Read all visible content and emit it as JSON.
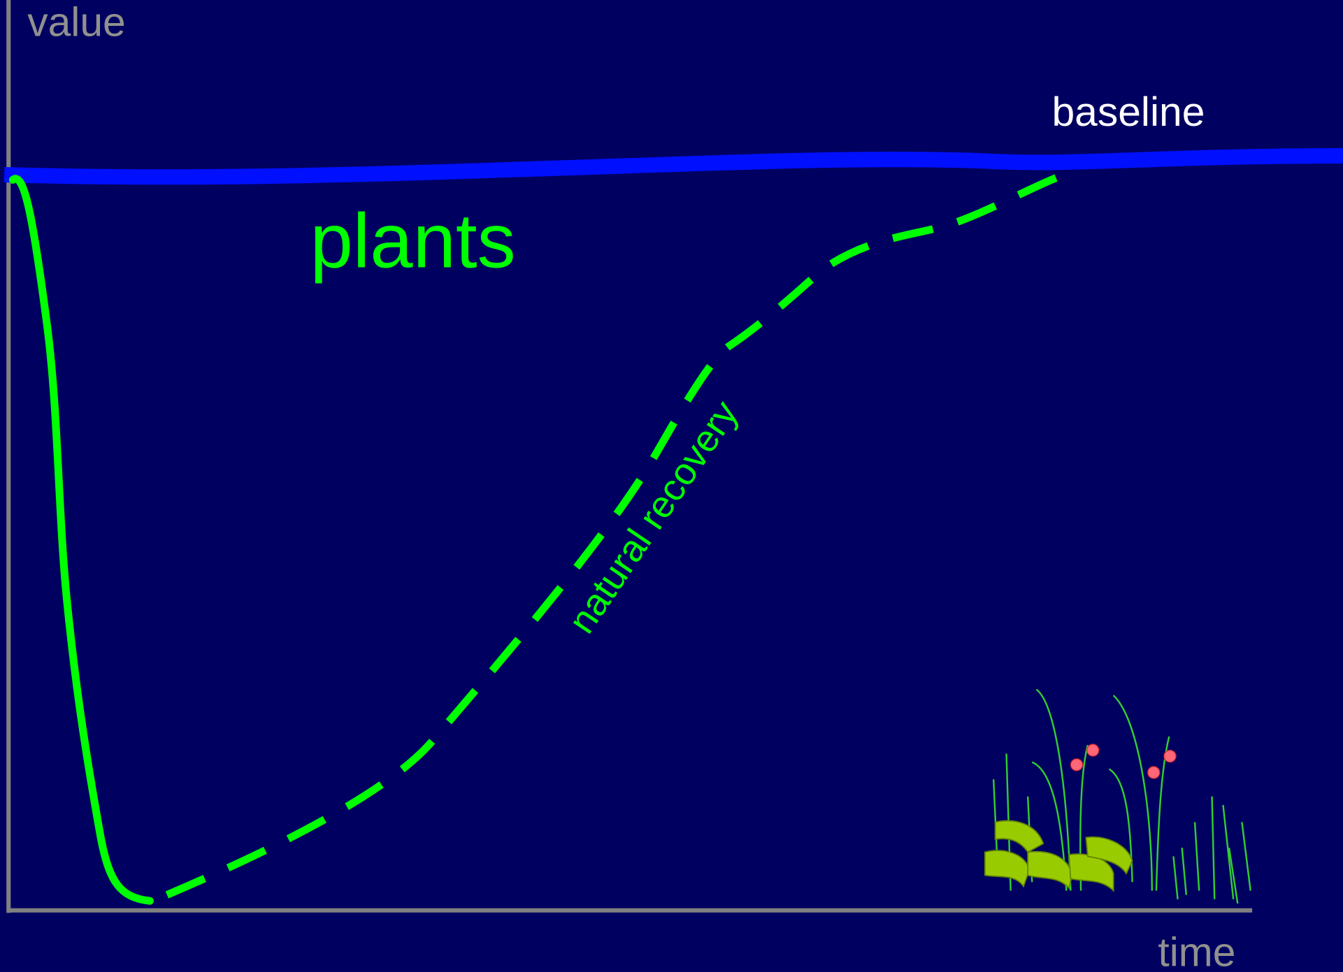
{
  "axes": {
    "y_label": "value",
    "x_label": "time"
  },
  "labels": {
    "baseline": "baseline",
    "series": "plants",
    "curve": "natural recovery"
  }
}
